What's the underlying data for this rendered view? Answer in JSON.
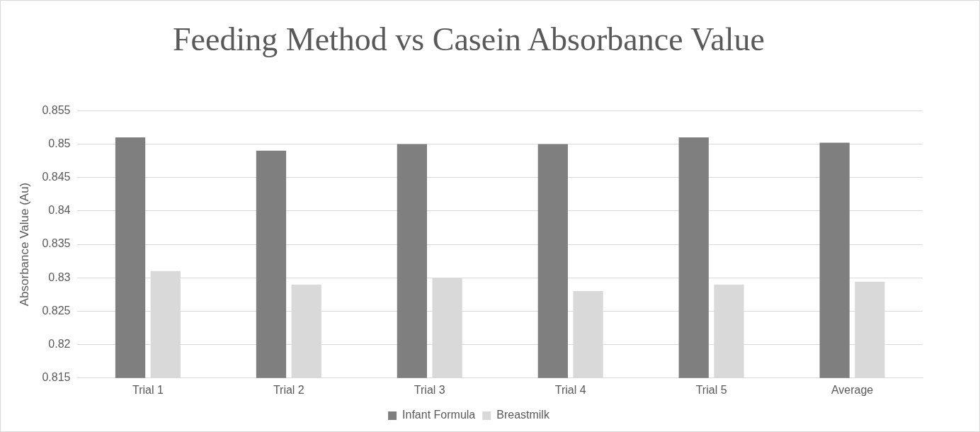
{
  "chart_data": {
    "type": "bar",
    "title": "Feeding Method vs Casein Absorbance Value",
    "ylabel": "Absorbance Value (Au)",
    "categories": [
      "Trial 1",
      "Trial 2",
      "Trial 3",
      "Trial 4",
      "Trial 5",
      "Average"
    ],
    "series": [
      {
        "name": "Infant Formula",
        "color": "#7f7f7f",
        "values": [
          0.851,
          0.849,
          0.85,
          0.85,
          0.851,
          0.8502
        ]
      },
      {
        "name": "Breastmilk",
        "color": "#d9d9d9",
        "values": [
          0.831,
          0.829,
          0.83,
          0.828,
          0.829,
          0.8294
        ]
      }
    ],
    "ylim": [
      0.815,
      0.855
    ],
    "yticks": [
      0.815,
      0.82,
      0.825,
      0.83,
      0.835,
      0.84,
      0.845,
      0.85,
      0.855
    ],
    "grid": "y",
    "legend": "bottom"
  }
}
